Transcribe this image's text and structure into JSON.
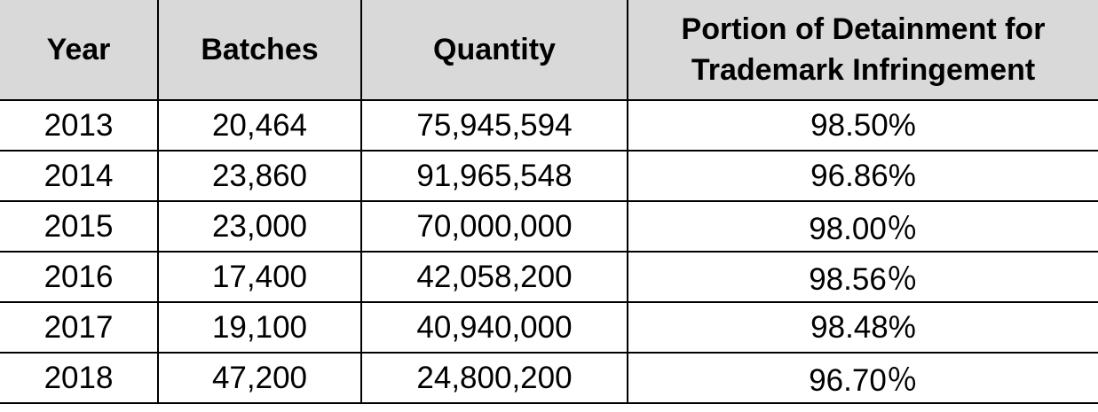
{
  "table": {
    "headers": [
      "Year",
      "Batches",
      "Quantity",
      "Portion of Detainment for Trademark Infringement"
    ],
    "rows": [
      [
        "2013",
        "20,464",
        "75,945,594",
        "98.50%"
      ],
      [
        "2014",
        "23,860",
        "91,965,548",
        "96.86%"
      ],
      [
        "2015",
        "23,000",
        "70,000,000",
        "98.00％"
      ],
      [
        "2016",
        "17,400",
        "42,058,200",
        "98.56％"
      ],
      [
        "2017",
        "19,100",
        "40,940,000",
        "98.48%"
      ],
      [
        "2018",
        "47,200",
        "24,800,200",
        "96.70％"
      ]
    ]
  }
}
